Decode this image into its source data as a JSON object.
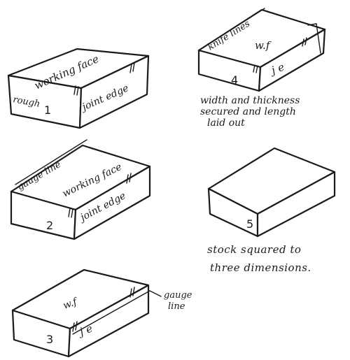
{
  "blocks": [
    {
      "number": "1",
      "top_face_label": "working face",
      "front_face_label": "joint edge",
      "end_face_label": "rough"
    },
    {
      "number": "2",
      "gauge_label": "gauge line",
      "top_face_label": "working face",
      "front_face_label": "joint edge"
    },
    {
      "number": "3",
      "top_face_label": "w.f",
      "front_face_label": "j e",
      "gauge_label_line1": "gauge",
      "gauge_label_line2": "line"
    },
    {
      "number": "4",
      "knife_label": "knife lines",
      "top_face_label": "w.f",
      "front_face_label": "j e",
      "caption_line1": "width and thickness",
      "caption_line2": "secured and length",
      "caption_line3": "laid out"
    },
    {
      "number": "5",
      "caption_line1": "stock squared to",
      "caption_line2": "three dimensions."
    }
  ]
}
